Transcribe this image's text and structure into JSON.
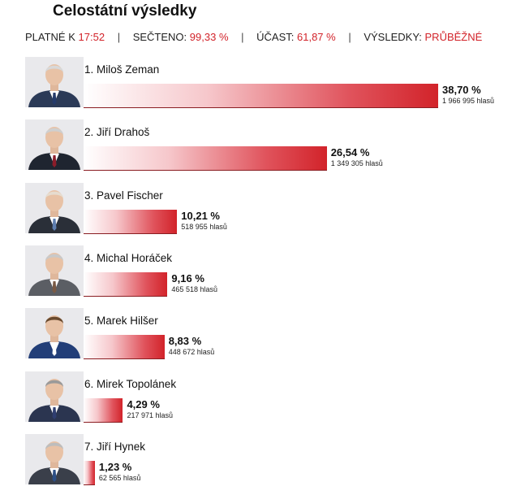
{
  "header": {
    "title": "Celostátní výsledky"
  },
  "status": {
    "valid_label": "PLATNÉ K",
    "valid_value": "17:52",
    "counted_label": "SEČTENO:",
    "counted_value": "99,33 %",
    "turnout_label": "ÚČAST:",
    "turnout_value": "61,87 %",
    "results_label": "VÝSLEDKY:",
    "results_value": "PRŮBĚŽNÉ",
    "separator": "|"
  },
  "colors": {
    "accent": "#d2232a",
    "bar_start": "#ffffff",
    "bar_end": "#d2232a"
  },
  "candidates": [
    {
      "label": "1. Miloš Zeman",
      "percent": 38.7,
      "percent_label": "38,70 %",
      "votes": "1 966 995 hlasů",
      "photo": "zeman-portrait"
    },
    {
      "label": "2. Jiří Drahoš",
      "percent": 26.54,
      "percent_label": "26,54 %",
      "votes": "1 349 305 hlasů",
      "photo": "drahos-portrait"
    },
    {
      "label": "3. Pavel Fischer",
      "percent": 10.21,
      "percent_label": "10,21 %",
      "votes": "518 955 hlasů",
      "photo": "fischer-portrait"
    },
    {
      "label": "4. Michal Horáček",
      "percent": 9.16,
      "percent_label": "9,16 %",
      "votes": "465 518 hlasů",
      "photo": "horacek-portrait"
    },
    {
      "label": "5. Marek Hilšer",
      "percent": 8.83,
      "percent_label": "8,83 %",
      "votes": "448 672 hlasů",
      "photo": "hilser-portrait"
    },
    {
      "label": "6. Mirek Topolánek",
      "percent": 4.29,
      "percent_label": "4,29 %",
      "votes": "217 971 hlasů",
      "photo": "topolanek-portrait"
    },
    {
      "label": "7. Jiří Hynek",
      "percent": 1.23,
      "percent_label": "1,23 %",
      "votes": "62 565 hlasů",
      "photo": "hynek-portrait"
    }
  ]
}
